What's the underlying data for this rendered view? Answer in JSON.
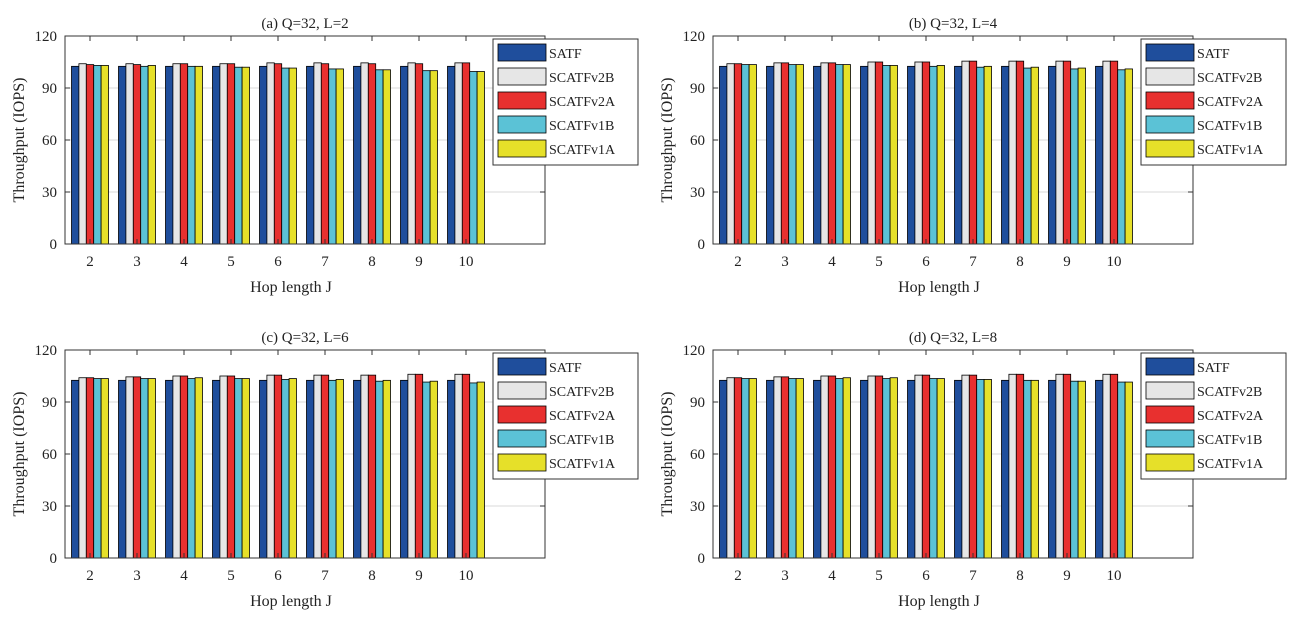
{
  "chart_data": [
    {
      "type": "bar",
      "title": "(a) Q=32, L=2",
      "xlabel": "Hop length J",
      "ylabel": "Throughput (IOPS)",
      "ylim": [
        0,
        120
      ],
      "yticks": [
        0,
        30,
        60,
        90,
        120
      ],
      "categories": [
        "2",
        "3",
        "4",
        "5",
        "6",
        "7",
        "8",
        "9",
        "10"
      ],
      "grid": "y",
      "legend_position": "top-right",
      "series": [
        {
          "name": "SATF",
          "color": "#1f4e9c",
          "values": [
            102.5,
            102.5,
            102.5,
            102.5,
            102.5,
            102.5,
            102.5,
            102.5,
            102.5
          ]
        },
        {
          "name": "SCATFv2B",
          "color": "#e6e6e6",
          "values": [
            104,
            104,
            104,
            104,
            104.5,
            104.5,
            104.5,
            104.5,
            104.5
          ]
        },
        {
          "name": "SCATFv2A",
          "color": "#e8302f",
          "values": [
            103.5,
            103.5,
            104,
            104,
            104,
            104,
            104,
            104,
            104.5
          ]
        },
        {
          "name": "SCATFv1B",
          "color": "#5bc2d6",
          "values": [
            103,
            102.5,
            102.5,
            102,
            101.5,
            101,
            100.5,
            100,
            99.5
          ]
        },
        {
          "name": "SCATFv1A",
          "color": "#e6e029",
          "values": [
            103,
            103,
            102.5,
            102,
            101.5,
            101,
            100.5,
            100,
            99.5
          ]
        }
      ]
    },
    {
      "type": "bar",
      "title": "(b) Q=32, L=4",
      "xlabel": "Hop length J",
      "ylabel": "Throughput (IOPS)",
      "ylim": [
        0,
        120
      ],
      "yticks": [
        0,
        30,
        60,
        90,
        120
      ],
      "categories": [
        "2",
        "3",
        "4",
        "5",
        "6",
        "7",
        "8",
        "9",
        "10"
      ],
      "grid": "y",
      "legend_position": "top-right",
      "series": [
        {
          "name": "SATF",
          "color": "#1f4e9c",
          "values": [
            102.5,
            102.5,
            102.5,
            102.5,
            102.5,
            102.5,
            102.5,
            102.5,
            102.5
          ]
        },
        {
          "name": "SCATFv2B",
          "color": "#e6e6e6",
          "values": [
            104,
            104.5,
            104.5,
            105,
            105,
            105.5,
            105.5,
            105.5,
            105.5
          ]
        },
        {
          "name": "SCATFv2A",
          "color": "#e8302f",
          "values": [
            104,
            104.5,
            104.5,
            105,
            105,
            105.5,
            105.5,
            105.5,
            105.5
          ]
        },
        {
          "name": "SCATFv1B",
          "color": "#5bc2d6",
          "values": [
            103.5,
            103.5,
            103.5,
            103,
            102.5,
            102,
            101.5,
            101,
            100.5
          ]
        },
        {
          "name": "SCATFv1A",
          "color": "#e6e029",
          "values": [
            103.5,
            103.5,
            103.5,
            103,
            103,
            102.5,
            102,
            101.5,
            101
          ]
        }
      ]
    },
    {
      "type": "bar",
      "title": "(c) Q=32, L=6",
      "xlabel": "Hop length J",
      "ylabel": "Throughput (IOPS)",
      "ylim": [
        0,
        120
      ],
      "yticks": [
        0,
        30,
        60,
        90,
        120
      ],
      "categories": [
        "2",
        "3",
        "4",
        "5",
        "6",
        "7",
        "8",
        "9",
        "10"
      ],
      "grid": "y",
      "legend_position": "top-right",
      "series": [
        {
          "name": "SATF",
          "color": "#1f4e9c",
          "values": [
            102.5,
            102.5,
            102.5,
            102.5,
            102.5,
            102.5,
            102.5,
            102.5,
            102.5
          ]
        },
        {
          "name": "SCATFv2B",
          "color": "#e6e6e6",
          "values": [
            104,
            104.5,
            105,
            105,
            105.5,
            105.5,
            105.5,
            106,
            106
          ]
        },
        {
          "name": "SCATFv2A",
          "color": "#e8302f",
          "values": [
            104,
            104.5,
            105,
            105,
            105.5,
            105.5,
            105.5,
            106,
            106
          ]
        },
        {
          "name": "SCATFv1B",
          "color": "#5bc2d6",
          "values": [
            103.5,
            103.5,
            103.5,
            103.5,
            103,
            102.5,
            102,
            101.5,
            101
          ]
        },
        {
          "name": "SCATFv1A",
          "color": "#e6e029",
          "values": [
            103.5,
            103.5,
            104,
            103.5,
            103.5,
            103,
            102.5,
            102,
            101.5
          ]
        }
      ]
    },
    {
      "type": "bar",
      "title": "(d) Q=32, L=8",
      "xlabel": "Hop length J",
      "ylabel": "Throughput (IOPS)",
      "ylim": [
        0,
        120
      ],
      "yticks": [
        0,
        30,
        60,
        90,
        120
      ],
      "categories": [
        "2",
        "3",
        "4",
        "5",
        "6",
        "7",
        "8",
        "9",
        "10"
      ],
      "grid": "y",
      "legend_position": "top-right",
      "series": [
        {
          "name": "SATF",
          "color": "#1f4e9c",
          "values": [
            102.5,
            102.5,
            102.5,
            102.5,
            102.5,
            102.5,
            102.5,
            102.5,
            102.5
          ]
        },
        {
          "name": "SCATFv2B",
          "color": "#e6e6e6",
          "values": [
            104,
            104.5,
            105,
            105,
            105.5,
            105.5,
            106,
            106,
            106
          ]
        },
        {
          "name": "SCATFv2A",
          "color": "#e8302f",
          "values": [
            104,
            104.5,
            105,
            105,
            105.5,
            105.5,
            106,
            106,
            106
          ]
        },
        {
          "name": "SCATFv1B",
          "color": "#5bc2d6",
          "values": [
            103.5,
            103.5,
            103.5,
            103.5,
            103.5,
            103,
            102.5,
            102,
            101.5
          ]
        },
        {
          "name": "SCATFv1A",
          "color": "#e6e029",
          "values": [
            103.5,
            103.5,
            104,
            104,
            103.5,
            103,
            102.5,
            102,
            101.5
          ]
        }
      ]
    }
  ]
}
